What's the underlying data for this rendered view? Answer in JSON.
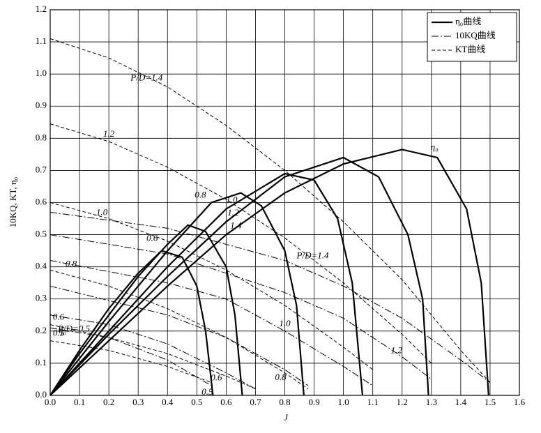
{
  "chart_data": {
    "type": "line",
    "x_label": "J",
    "y_label": "10KQ, KT, η₀",
    "xlim": [
      0,
      1.6
    ],
    "ylim": [
      0,
      1.2
    ],
    "xticks": [
      {
        "value": 0,
        "label": "0.0"
      },
      {
        "value": 0.1,
        "label": "0.1"
      },
      {
        "value": 0.2,
        "label": "0.2"
      },
      {
        "value": 0.3,
        "label": "0.3"
      },
      {
        "value": 0.4,
        "label": "0.4"
      },
      {
        "value": 0.5,
        "label": "0.5"
      },
      {
        "value": 0.6,
        "label": "0.6"
      },
      {
        "value": 0.7,
        "label": "0.7"
      },
      {
        "value": 0.8,
        "label": "0.8"
      },
      {
        "value": 0.9,
        "label": "0.9"
      },
      {
        "value": 1.0,
        "label": "1.0"
      },
      {
        "value": 1.1,
        "label": "1.1"
      },
      {
        "value": 1.2,
        "label": "1.2"
      },
      {
        "value": 1.3,
        "label": "1.3"
      },
      {
        "value": 1.4,
        "label": "1.4"
      },
      {
        "value": 1.5,
        "label": "1.5"
      },
      {
        "value": 1.6,
        "label": "1.6"
      }
    ],
    "yticks": [
      {
        "value": 0,
        "label": "0.0"
      },
      {
        "value": 0.1,
        "label": "0.1"
      },
      {
        "value": 0.2,
        "label": "0.2"
      },
      {
        "value": 0.3,
        "label": "0.3"
      },
      {
        "value": 0.4,
        "label": "0.4"
      },
      {
        "value": 0.5,
        "label": "0.5"
      },
      {
        "value": 0.6,
        "label": "0.6"
      },
      {
        "value": 0.7,
        "label": "0.7"
      },
      {
        "value": 0.8,
        "label": "0.8"
      },
      {
        "value": 0.9,
        "label": "0.9"
      },
      {
        "value": 1.0,
        "label": "1.0"
      },
      {
        "value": 1.1,
        "label": "1.1"
      },
      {
        "value": 1.2,
        "label": "1.2"
      }
    ],
    "grid": true,
    "legend": {
      "position": "upper right",
      "entries": [
        {
          "label": "η₀曲线",
          "style": "solid"
        },
        {
          "label": "10KQ曲线",
          "style": "dashdot"
        },
        {
          "label": "KT曲线",
          "style": "dashed"
        }
      ]
    },
    "annotations": [
      {
        "text": "η₀"
      },
      {
        "text": "η₀"
      }
    ],
    "series": [
      {
        "name": "P/D=0.5",
        "style": "solid",
        "color": "#000",
        "x": [
          0,
          0.1,
          0.2,
          0.3,
          0.38,
          0.45,
          0.5,
          0.53,
          0.555
        ],
        "values": [
          0,
          0.14,
          0.27,
          0.38,
          0.45,
          0.43,
          0.34,
          0.2,
          0
        ]
      },
      {
        "name": "0.6",
        "style": "solid",
        "color": "#000",
        "x": [
          0,
          0.1,
          0.2,
          0.3,
          0.4,
          0.47,
          0.53,
          0.6,
          0.63,
          0.655
        ],
        "values": [
          0,
          0.13,
          0.25,
          0.37,
          0.47,
          0.53,
          0.51,
          0.4,
          0.25,
          0
        ]
      },
      {
        "name": "0.8",
        "style": "solid",
        "color": "#000",
        "x": [
          0,
          0.2,
          0.4,
          0.55,
          0.65,
          0.72,
          0.8,
          0.84,
          0.865
        ],
        "values": [
          0,
          0.23,
          0.45,
          0.6,
          0.63,
          0.59,
          0.45,
          0.28,
          0
        ]
      },
      {
        "name": "1.0",
        "style": "solid",
        "color": "#000",
        "x": [
          0,
          0.2,
          0.4,
          0.6,
          0.8,
          0.9,
          0.98,
          1.03,
          1.065
        ],
        "values": [
          0,
          0.2,
          0.4,
          0.58,
          0.69,
          0.67,
          0.55,
          0.35,
          0
        ]
      },
      {
        "name": "1.2",
        "style": "solid",
        "color": "#000",
        "x": [
          0,
          0.2,
          0.4,
          0.6,
          0.8,
          1.0,
          1.12,
          1.22,
          1.27,
          1.29
        ],
        "values": [
          0,
          0.19,
          0.37,
          0.54,
          0.68,
          0.74,
          0.68,
          0.5,
          0.3,
          0
        ]
      },
      {
        "name": "1.4",
        "style": "solid",
        "color": "#000",
        "x": [
          0,
          0.2,
          0.4,
          0.6,
          0.8,
          1.0,
          1.2,
          1.32,
          1.42,
          1.47,
          1.495
        ],
        "values": [
          0,
          0.17,
          0.34,
          0.5,
          0.63,
          0.72,
          0.765,
          0.74,
          0.58,
          0.35,
          0
        ]
      },
      {
        "name": "P/D=1.4",
        "style": "dashed",
        "color": "#000",
        "x": [
          0,
          0.2,
          0.4,
          0.6,
          0.8,
          1.0,
          1.2,
          1.4,
          1.5
        ],
        "values": [
          1.11,
          1.05,
          0.96,
          0.84,
          0.7,
          0.54,
          0.36,
          0.14,
          0.04
        ]
      },
      {
        "name": "1.2",
        "style": "dashed",
        "color": "#000",
        "x": [
          0,
          0.2,
          0.4,
          0.6,
          0.8,
          1.0,
          1.2,
          1.3
        ],
        "values": [
          0.845,
          0.79,
          0.71,
          0.61,
          0.49,
          0.35,
          0.19,
          0.1
        ]
      },
      {
        "name": "1.0",
        "style": "dashed",
        "color": "#000",
        "x": [
          0,
          0.2,
          0.4,
          0.6,
          0.8,
          1.0,
          1.1
        ],
        "values": [
          0.6,
          0.55,
          0.48,
          0.39,
          0.28,
          0.15,
          0.08
        ]
      },
      {
        "name": "0.8",
        "style": "dashed",
        "color": "#000",
        "x": [
          0,
          0.2,
          0.4,
          0.6,
          0.8,
          0.88
        ],
        "values": [
          0.39,
          0.34,
          0.27,
          0.18,
          0.07,
          0.02
        ]
      },
      {
        "name": "0.6",
        "style": "dashed",
        "color": "#000",
        "x": [
          0,
          0.2,
          0.4,
          0.6,
          0.7
        ],
        "values": [
          0.22,
          0.18,
          0.13,
          0.06,
          0.02
        ]
      },
      {
        "name": "0.5",
        "style": "dashed",
        "color": "#000",
        "x": [
          0,
          0.2,
          0.4,
          0.55
        ],
        "values": [
          0.17,
          0.14,
          0.09,
          0.04
        ]
      },
      {
        "name": "P/D=1.4",
        "style": "dashdot",
        "color": "#000",
        "x": [
          0,
          0.4,
          0.8,
          1.0,
          1.2,
          1.4,
          1.5
        ],
        "values": [
          0.57,
          0.52,
          0.42,
          0.34,
          0.24,
          0.11,
          0.04
        ]
      },
      {
        "name": "1.2",
        "style": "dashdot",
        "color": "#000",
        "x": [
          0,
          0.4,
          0.8,
          1.0,
          1.2,
          1.3
        ],
        "values": [
          0.5,
          0.44,
          0.32,
          0.24,
          0.12,
          0.05
        ]
      },
      {
        "name": "1.0",
        "style": "dashdot",
        "color": "#000",
        "x": [
          0,
          0.4,
          0.6,
          0.8,
          1.0,
          1.1
        ],
        "values": [
          0.42,
          0.35,
          0.3,
          0.2,
          0.09,
          0.03
        ]
      },
      {
        "name": "0.8",
        "style": "dashdot",
        "color": "#000",
        "x": [
          0,
          0.4,
          0.6,
          0.8,
          0.88
        ],
        "values": [
          0.34,
          0.25,
          0.18,
          0.08,
          0.03
        ]
      },
      {
        "name": "0.6",
        "style": "dashdot",
        "color": "#000",
        "x": [
          0,
          0.2,
          0.4,
          0.6,
          0.7
        ],
        "values": [
          0.25,
          0.22,
          0.16,
          0.07,
          0.02
        ]
      },
      {
        "name": "0.5",
        "style": "dashdot",
        "color": "#000",
        "x": [
          0,
          0.2,
          0.4,
          0.55
        ],
        "values": [
          0.21,
          0.18,
          0.11,
          0.03
        ]
      }
    ]
  }
}
